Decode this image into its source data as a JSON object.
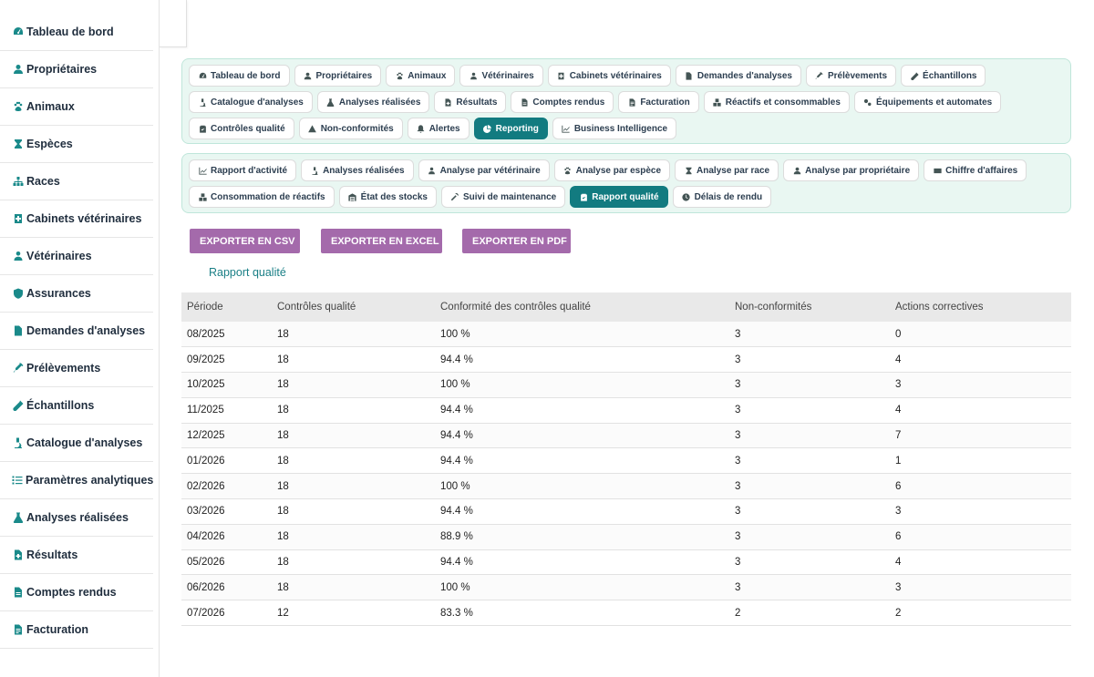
{
  "sidebar": {
    "items": [
      {
        "label": "Tableau de bord",
        "icon": "gauge-icon"
      },
      {
        "label": "Propriétaires",
        "icon": "user-icon"
      },
      {
        "label": "Animaux",
        "icon": "paw-icon"
      },
      {
        "label": "Espèces",
        "icon": "hourglass-icon"
      },
      {
        "label": "Races",
        "icon": "sitemap-icon"
      },
      {
        "label": "Cabinets vétérinaires",
        "icon": "clinic-icon"
      },
      {
        "label": "Vétérinaires",
        "icon": "doctor-icon"
      },
      {
        "label": "Assurances",
        "icon": "shield-icon"
      },
      {
        "label": "Demandes d'analyses",
        "icon": "file-icon"
      },
      {
        "label": "Prélèvements",
        "icon": "syringe-icon"
      },
      {
        "label": "Échantillons",
        "icon": "vial-icon"
      },
      {
        "label": "Catalogue d'analyses",
        "icon": "microscope-icon"
      },
      {
        "label": "Paramètres analytiques",
        "icon": "list-icon"
      },
      {
        "label": "Analyses réalisées",
        "icon": "flask-icon"
      },
      {
        "label": "Résultats",
        "icon": "file-medical-icon"
      },
      {
        "label": "Comptes rendus",
        "icon": "file-report-icon"
      },
      {
        "label": "Facturation",
        "icon": "invoice-icon"
      }
    ]
  },
  "top_nav": [
    {
      "label": "Tableau de bord",
      "icon": "gauge-icon"
    },
    {
      "label": "Propriétaires",
      "icon": "user-icon"
    },
    {
      "label": "Animaux",
      "icon": "paw-icon"
    },
    {
      "label": "Vétérinaires",
      "icon": "doctor-icon"
    },
    {
      "label": "Cabinets vétérinaires",
      "icon": "clinic-icon"
    },
    {
      "label": "Demandes d'analyses",
      "icon": "file-icon"
    },
    {
      "label": "Prélèvements",
      "icon": "syringe-icon"
    },
    {
      "label": "Échantillons",
      "icon": "vial-icon"
    },
    {
      "label": "Catalogue d'analyses",
      "icon": "microscope-icon"
    },
    {
      "label": "Analyses réalisées",
      "icon": "flask-icon"
    },
    {
      "label": "Résultats",
      "icon": "file-medical-icon"
    },
    {
      "label": "Comptes rendus",
      "icon": "file-report-icon"
    },
    {
      "label": "Facturation",
      "icon": "invoice-icon"
    },
    {
      "label": "Réactifs et consommables",
      "icon": "boxes-icon"
    },
    {
      "label": "Équipements et automates",
      "icon": "cogs-icon"
    },
    {
      "label": "Contrôles qualité",
      "icon": "clipboard-check-icon"
    },
    {
      "label": "Non-conformités",
      "icon": "warning-icon"
    },
    {
      "label": "Alertes",
      "icon": "bell-icon"
    },
    {
      "label": "Reporting",
      "icon": "chart-pie-icon",
      "active": true
    },
    {
      "label": "Business Intelligence",
      "icon": "chart-line-icon"
    }
  ],
  "sub_nav": [
    {
      "label": "Rapport d'activité",
      "icon": "chart-line-icon"
    },
    {
      "label": "Analyses réalisées",
      "icon": "microscope-icon"
    },
    {
      "label": "Analyse par vétérinaire",
      "icon": "doctor-icon"
    },
    {
      "label": "Analyse par espèce",
      "icon": "paw-icon"
    },
    {
      "label": "Analyse par race",
      "icon": "hourglass-icon"
    },
    {
      "label": "Analyse par propriétaire",
      "icon": "user-icon"
    },
    {
      "label": "Chiffre d'affaires",
      "icon": "money-icon"
    },
    {
      "label": "Consommation de réactifs",
      "icon": "boxes-icon"
    },
    {
      "label": "État des stocks",
      "icon": "warehouse-icon"
    },
    {
      "label": "Suivi de maintenance",
      "icon": "tools-icon"
    },
    {
      "label": "Rapport qualité",
      "icon": "clipboard-check-icon",
      "active": true
    },
    {
      "label": "Délais de rendu",
      "icon": "clock-icon"
    }
  ],
  "export": {
    "csv": "EXPORTER EN CSV",
    "excel": "EXPORTER EN EXCEL",
    "pdf": "EXPORTER EN PDF"
  },
  "report": {
    "title": "Rapport qualité",
    "columns": [
      "Période",
      "Contrôles qualité",
      "Conformité des contrôles qualité",
      "Non-conformités",
      "Actions correctives"
    ],
    "rows": [
      [
        "08/2025",
        "18",
        "100 %",
        "3",
        "0"
      ],
      [
        "09/2025",
        "18",
        "94.4 %",
        "3",
        "4"
      ],
      [
        "10/2025",
        "18",
        "100 %",
        "3",
        "3"
      ],
      [
        "11/2025",
        "18",
        "94.4 %",
        "3",
        "4"
      ],
      [
        "12/2025",
        "18",
        "94.4 %",
        "3",
        "7"
      ],
      [
        "01/2026",
        "18",
        "94.4 %",
        "3",
        "1"
      ],
      [
        "02/2026",
        "18",
        "100 %",
        "3",
        "6"
      ],
      [
        "03/2026",
        "18",
        "94.4 %",
        "3",
        "3"
      ],
      [
        "04/2026",
        "18",
        "88.9 %",
        "3",
        "6"
      ],
      [
        "05/2026",
        "18",
        "94.4 %",
        "3",
        "4"
      ],
      [
        "06/2026",
        "18",
        "100 %",
        "3",
        "3"
      ],
      [
        "07/2026",
        "12",
        "83.3 %",
        "2",
        "2"
      ]
    ]
  },
  "colors": {
    "accent": "#127b80",
    "export_button": "#a46aab",
    "nav_panel_bg": "#e9f7f2",
    "link": "#1a7f86"
  }
}
